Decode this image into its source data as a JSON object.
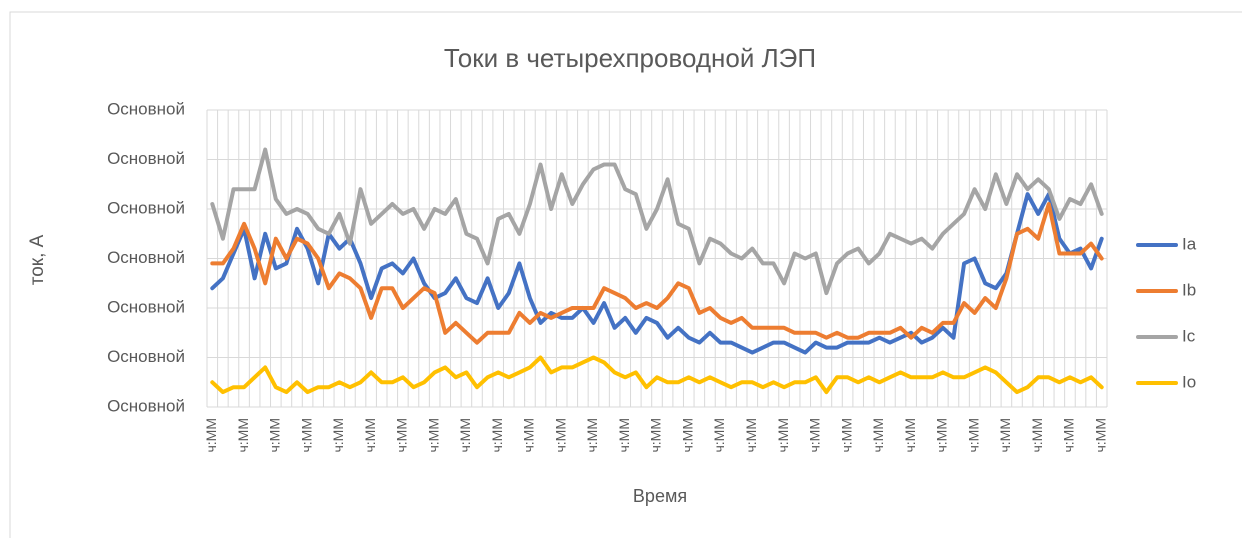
{
  "chart_data": {
    "type": "line",
    "title": "Токи в четырехпроводной ЛЭП",
    "x_label": "Время",
    "y_label": "ток, А",
    "categories": [
      "ч:ММ",
      null,
      null,
      "ч:ММ",
      null,
      null,
      "ч:ММ",
      null,
      null,
      "ч:ММ",
      null,
      null,
      "ч:ММ",
      null,
      null,
      "ч:ММ",
      null,
      null,
      "ч:ММ",
      null,
      null,
      "ч:ММ",
      null,
      null,
      "ч:ММ",
      null,
      null,
      "ч:ММ",
      null,
      null,
      "ч:ММ",
      null,
      null,
      "ч:ММ",
      null,
      null,
      "ч:ММ",
      null,
      null,
      "ч:ММ",
      null,
      null,
      "ч:ММ",
      null,
      null,
      "ч:ММ",
      null,
      null,
      "ч:ММ",
      null,
      null,
      "ч:ММ",
      null,
      null,
      "ч:ММ",
      null,
      null,
      "ч:ММ",
      null,
      null,
      "ч:ММ",
      null,
      null,
      "ч:ММ",
      null,
      null,
      "ч:ММ",
      null,
      null,
      "ч:ММ",
      null,
      null,
      "ч:ММ",
      null,
      null,
      "ч:ММ",
      null,
      null,
      "ч:ММ",
      null,
      null,
      "ч:ММ",
      null,
      null,
      "ч:ММ"
    ],
    "series": [
      {
        "name": "Ia",
        "color": "#4472c4",
        "values": [
          24,
          26,
          31,
          36,
          26,
          35,
          28,
          29,
          36,
          32,
          25,
          35,
          32,
          34,
          29,
          22,
          28,
          29,
          27,
          30,
          25,
          22,
          23,
          26,
          22,
          21,
          26,
          20,
          23,
          29,
          22,
          17,
          19,
          18,
          18,
          20,
          17,
          21,
          16,
          18,
          15,
          18,
          17,
          14,
          16,
          14,
          13,
          15,
          13,
          13,
          12,
          11,
          12,
          13,
          13,
          12,
          11,
          13,
          12,
          12,
          13,
          13,
          13,
          14,
          13,
          14,
          15,
          13,
          14,
          16,
          14,
          29,
          30,
          25,
          24,
          27,
          35,
          43,
          39,
          43,
          34,
          31,
          32,
          28,
          34
        ]
      },
      {
        "name": "Ib",
        "color": "#ed7d31",
        "values": [
          29,
          29,
          32,
          37,
          32,
          25,
          34,
          30,
          34,
          33,
          30,
          24,
          27,
          26,
          24,
          18,
          24,
          24,
          20,
          22,
          24,
          23,
          15,
          17,
          15,
          13,
          15,
          15,
          15,
          19,
          17,
          19,
          18,
          19,
          20,
          20,
          20,
          24,
          23,
          22,
          20,
          21,
          20,
          22,
          25,
          24,
          19,
          20,
          18,
          17,
          18,
          16,
          16,
          16,
          16,
          15,
          15,
          15,
          14,
          15,
          14,
          14,
          15,
          15,
          15,
          16,
          14,
          16,
          15,
          17,
          17,
          21,
          19,
          22,
          20,
          26,
          35,
          36,
          34,
          41,
          31,
          31,
          31,
          33,
          30
        ]
      },
      {
        "name": "Ic",
        "color": "#a5a5a5",
        "values": [
          41,
          34,
          44,
          44,
          44,
          52,
          42,
          39,
          40,
          39,
          36,
          35,
          39,
          33,
          44,
          37,
          39,
          41,
          39,
          40,
          36,
          40,
          39,
          42,
          35,
          34,
          29,
          38,
          39,
          35,
          41,
          49,
          40,
          47,
          41,
          45,
          48,
          49,
          49,
          44,
          43,
          36,
          40,
          46,
          37,
          36,
          29,
          34,
          33,
          31,
          30,
          32,
          29,
          29,
          25,
          31,
          30,
          31,
          23,
          29,
          31,
          32,
          29,
          31,
          35,
          34,
          33,
          34,
          32,
          35,
          37,
          39,
          44,
          40,
          47,
          41,
          47,
          44,
          46,
          44,
          38,
          42,
          41,
          45,
          39
        ]
      },
      {
        "name": "Io",
        "color": "#ffc000",
        "values": [
          5,
          3,
          4,
          4,
          6,
          8,
          4,
          3,
          5,
          3,
          4,
          4,
          5,
          4,
          5,
          7,
          5,
          5,
          6,
          4,
          5,
          7,
          8,
          6,
          7,
          4,
          6,
          7,
          6,
          7,
          8,
          10,
          7,
          8,
          8,
          9,
          10,
          9,
          7,
          6,
          7,
          4,
          6,
          5,
          5,
          6,
          5,
          6,
          5,
          4,
          5,
          5,
          4,
          5,
          4,
          5,
          5,
          6,
          3,
          6,
          6,
          5,
          6,
          5,
          6,
          7,
          6,
          6,
          6,
          7,
          6,
          6,
          7,
          8,
          7,
          5,
          3,
          4,
          6,
          6,
          5,
          6,
          5,
          6,
          4
        ]
      }
    ],
    "ylim": [
      0,
      60
    ],
    "yticks": [
      {
        "value": 0,
        "label": "Основной"
      },
      {
        "value": 10,
        "label": "Основной"
      },
      {
        "value": 20,
        "label": "Основной"
      },
      {
        "value": 30,
        "label": "Основной"
      },
      {
        "value": 40,
        "label": "Основной"
      },
      {
        "value": 50,
        "label": "Основной"
      },
      {
        "value": 60,
        "label": "Основной"
      }
    ],
    "grid": true,
    "legend": "right"
  }
}
